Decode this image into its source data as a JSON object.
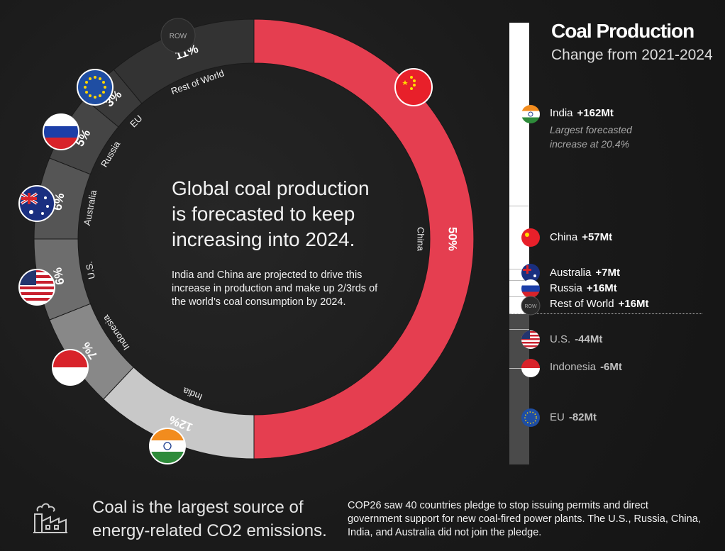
{
  "chart_data": {
    "type": "pie",
    "title": "Global coal production",
    "segments": [
      {
        "name": "China",
        "value": 50,
        "label": "50%",
        "color": "#e53e50"
      },
      {
        "name": "India",
        "value": 12,
        "label": "12%",
        "color": "#c8c8c8"
      },
      {
        "name": "Indonesia",
        "value": 7,
        "label": "7%",
        "color": "#888888"
      },
      {
        "name": "U.S.",
        "value": 6,
        "label": "6%",
        "color": "#6d6d6d"
      },
      {
        "name": "Australia",
        "value": 6,
        "label": "6%",
        "color": "#555555"
      },
      {
        "name": "Russia",
        "value": 5,
        "label": "5%",
        "color": "#454545"
      },
      {
        "name": "EU",
        "value": 3,
        "label": "3%",
        "color": "#3a3a3a"
      },
      {
        "name": "Rest of World",
        "value": 11,
        "label": "11%",
        "color": "#333333",
        "badge": "ROW"
      }
    ]
  },
  "center": {
    "headline": "Global coal production is forecasted to keep increasing into 2024.",
    "subtext": "India and China are projected to drive this increase in production and make up 2/3rds of the world’s coal consumption by 2024."
  },
  "side_chart": {
    "title": "Coal Production",
    "subtitle": "Change from 2021-2024",
    "entries": [
      {
        "country": "India",
        "change": "+162Mt",
        "note": "Largest forecasted increase at 20.4%"
      },
      {
        "country": "China",
        "change": "+57Mt"
      },
      {
        "country": "Australia",
        "change": "+7Mt"
      },
      {
        "country": "Russia",
        "change": "+16Mt"
      },
      {
        "country": "Rest of World",
        "change": "+16Mt",
        "badge": "ROW"
      },
      {
        "country": "U.S.",
        "change": "-44Mt"
      },
      {
        "country": "Indonesia",
        "change": "-6Mt"
      },
      {
        "country": "EU",
        "change": "-82Mt"
      }
    ]
  },
  "footer": {
    "fact": "Coal is the largest source of energy-related CO2 emissions.",
    "cop26": "COP26 saw 40 countries pledge to stop issuing permits and direct government support for new coal-fired power plants. The U.S., Russia, China, India, and Australia did not join the pledge."
  },
  "colors": {
    "accent_red": "#e53e50",
    "bar_positive": "#ffffff",
    "bar_negative": "#4a4a4a"
  }
}
